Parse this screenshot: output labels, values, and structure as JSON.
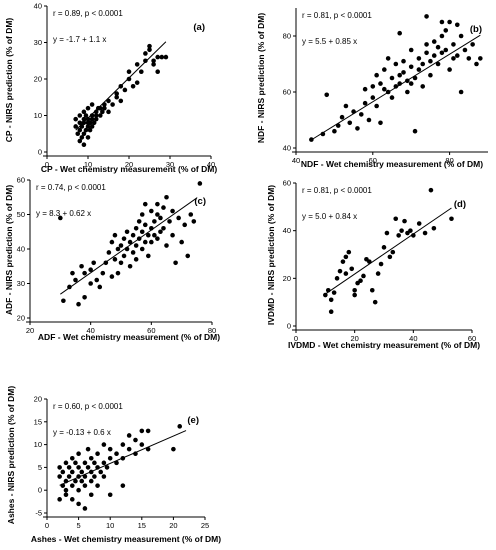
{
  "chart_data": [
    {
      "type": "scatter",
      "panel_label": "(a)",
      "xlabel": "CP - Wet chemistry measurement (% of DM)",
      "ylabel": "CP - NIRS prediction (% of DM)",
      "xlim": [
        0,
        40
      ],
      "ylim": [
        0,
        40
      ],
      "xticks": [
        0,
        10,
        20,
        30,
        40
      ],
      "yticks": [
        0,
        10,
        20,
        30,
        40
      ],
      "annotations": [
        "r = 0.89,  p < 0.0001",
        "y = -1.7 + 1.1 x"
      ],
      "regression": {
        "intercept": -1.7,
        "slope": 1.1,
        "x_range": [
          7,
          29
        ]
      },
      "points": [
        [
          7,
          7
        ],
        [
          7,
          9
        ],
        [
          7.5,
          5
        ],
        [
          8,
          3
        ],
        [
          8,
          6
        ],
        [
          8,
          8
        ],
        [
          8,
          10
        ],
        [
          8.5,
          4
        ],
        [
          8.5,
          7
        ],
        [
          9,
          2
        ],
        [
          9,
          5
        ],
        [
          9,
          8
        ],
        [
          9,
          9
        ],
        [
          9,
          11
        ],
        [
          9.5,
          6
        ],
        [
          9.5,
          10
        ],
        [
          10,
          4
        ],
        [
          10,
          7
        ],
        [
          10,
          8
        ],
        [
          10,
          9
        ],
        [
          10,
          12
        ],
        [
          10.5,
          6
        ],
        [
          10.5,
          8
        ],
        [
          11,
          7
        ],
        [
          11,
          9
        ],
        [
          11,
          10
        ],
        [
          11,
          13
        ],
        [
          11.5,
          8
        ],
        [
          12,
          9
        ],
        [
          12,
          11
        ],
        [
          12,
          10
        ],
        [
          12.5,
          12
        ],
        [
          13,
          10
        ],
        [
          13,
          12
        ],
        [
          13.5,
          11
        ],
        [
          14,
          12
        ],
        [
          14,
          13
        ],
        [
          15,
          11
        ],
        [
          15,
          14
        ],
        [
          16,
          13
        ],
        [
          17,
          15
        ],
        [
          17,
          16
        ],
        [
          18,
          18
        ],
        [
          18,
          14
        ],
        [
          19,
          17
        ],
        [
          20,
          20
        ],
        [
          20,
          22
        ],
        [
          21,
          18
        ],
        [
          22,
          19
        ],
        [
          22,
          24
        ],
        [
          23,
          22
        ],
        [
          24,
          25
        ],
        [
          24,
          27
        ],
        [
          25,
          28
        ],
        [
          25,
          29
        ],
        [
          26,
          25
        ],
        [
          26,
          24
        ],
        [
          27,
          26
        ],
        [
          27,
          22
        ],
        [
          28,
          26
        ],
        [
          29,
          26
        ]
      ]
    },
    {
      "type": "scatter",
      "panel_label": "(b)",
      "xlabel": "NDF - Wet chemistry measurement (% of DM)",
      "ylabel": "NDF - NIRS prediction (% of DM)",
      "xlim": [
        40,
        90
      ],
      "ylim": [
        40,
        90
      ],
      "xticks": [
        40,
        60,
        80
      ],
      "yticks": [
        40,
        60,
        80
      ],
      "annotations": [
        "r = 0.81,  p < 0.0001",
        "y = 5.5 + 0.85 x"
      ],
      "regression": {
        "intercept": 5.5,
        "slope": 0.85,
        "x_range": [
          44,
          88
        ]
      },
      "points": [
        [
          44,
          43
        ],
        [
          47,
          45
        ],
        [
          48,
          59
        ],
        [
          50,
          46
        ],
        [
          51,
          48
        ],
        [
          52,
          51
        ],
        [
          53,
          55
        ],
        [
          54,
          49
        ],
        [
          55,
          53
        ],
        [
          56,
          47
        ],
        [
          57,
          52
        ],
        [
          58,
          56
        ],
        [
          58,
          61
        ],
        [
          59,
          50
        ],
        [
          60,
          58
        ],
        [
          60,
          62
        ],
        [
          61,
          66
        ],
        [
          61,
          55
        ],
        [
          62,
          63
        ],
        [
          62,
          49
        ],
        [
          63,
          61
        ],
        [
          63,
          68
        ],
        [
          64,
          60
        ],
        [
          64,
          72
        ],
        [
          65,
          65
        ],
        [
          65,
          58
        ],
        [
          66,
          62
        ],
        [
          66,
          70
        ],
        [
          67,
          63
        ],
        [
          67,
          66
        ],
        [
          67,
          81
        ],
        [
          68,
          67
        ],
        [
          68,
          71
        ],
        [
          69,
          64
        ],
        [
          69,
          60
        ],
        [
          70,
          63
        ],
        [
          70,
          69
        ],
        [
          70,
          75
        ],
        [
          71,
          46
        ],
        [
          71,
          65
        ],
        [
          72,
          72
        ],
        [
          72,
          68
        ],
        [
          73,
          70
        ],
        [
          73,
          62
        ],
        [
          74,
          74
        ],
        [
          74,
          77
        ],
        [
          75,
          71
        ],
        [
          75,
          66
        ],
        [
          76,
          73
        ],
        [
          76,
          78
        ],
        [
          77,
          76
        ],
        [
          77,
          70
        ],
        [
          78,
          74
        ],
        [
          78,
          80
        ],
        [
          79,
          75
        ],
        [
          79,
          82
        ],
        [
          80,
          68
        ],
        [
          80,
          85
        ],
        [
          81,
          72
        ],
        [
          81,
          77
        ],
        [
          82,
          84
        ],
        [
          82,
          73
        ],
        [
          83,
          80
        ],
        [
          83,
          60
        ],
        [
          84,
          75
        ],
        [
          85,
          72
        ],
        [
          86,
          77
        ],
        [
          87,
          70
        ],
        [
          88,
          72
        ],
        [
          74,
          87
        ],
        [
          78,
          85
        ]
      ]
    },
    {
      "type": "scatter",
      "panel_label": "(c)",
      "xlabel": "ADF - Wet chemistry measurement (% of DM)",
      "ylabel": "ADF - NIRS prediction (% of DM)",
      "xlim": [
        20,
        80
      ],
      "ylim": [
        20,
        60
      ],
      "xticks": [
        20,
        40,
        60,
        80
      ],
      "yticks": [
        20,
        30,
        40,
        50,
        60
      ],
      "annotations": [
        "r = 0.74,  p < 0.0001",
        "y = 8.3 + 0.62 x"
      ],
      "regression": {
        "intercept": 8.3,
        "slope": 0.62,
        "x_range": [
          30,
          75
        ]
      },
      "points": [
        [
          30,
          49
        ],
        [
          31,
          25
        ],
        [
          33,
          29
        ],
        [
          34,
          33
        ],
        [
          35,
          31
        ],
        [
          36,
          24
        ],
        [
          37,
          35
        ],
        [
          38,
          26
        ],
        [
          38,
          33
        ],
        [
          40,
          34
        ],
        [
          40,
          30
        ],
        [
          41,
          36
        ],
        [
          42,
          31
        ],
        [
          43,
          29
        ],
        [
          44,
          33
        ],
        [
          45,
          36
        ],
        [
          46,
          39
        ],
        [
          47,
          32
        ],
        [
          47,
          42
        ],
        [
          48,
          37
        ],
        [
          48,
          44
        ],
        [
          49,
          40
        ],
        [
          49,
          33
        ],
        [
          50,
          36
        ],
        [
          50,
          41
        ],
        [
          51,
          43
        ],
        [
          51,
          38
        ],
        [
          52,
          40
        ],
        [
          52,
          45
        ],
        [
          53,
          42
        ],
        [
          53,
          35
        ],
        [
          54,
          44
        ],
        [
          54,
          39
        ],
        [
          55,
          46
        ],
        [
          55,
          41
        ],
        [
          55,
          37
        ],
        [
          56,
          43
        ],
        [
          56,
          48
        ],
        [
          57,
          45
        ],
        [
          57,
          40
        ],
        [
          57,
          50
        ],
        [
          58,
          42
        ],
        [
          58,
          47
        ],
        [
          58,
          53
        ],
        [
          59,
          44
        ],
        [
          59,
          38
        ],
        [
          60,
          46
        ],
        [
          60,
          51
        ],
        [
          60,
          42
        ],
        [
          61,
          48
        ],
        [
          61,
          44
        ],
        [
          62,
          50
        ],
        [
          62,
          43
        ],
        [
          62,
          53
        ],
        [
          63,
          45
        ],
        [
          63,
          49
        ],
        [
          64,
          52
        ],
        [
          64,
          46
        ],
        [
          65,
          41
        ],
        [
          65,
          55
        ],
        [
          66,
          48
        ],
        [
          67,
          44
        ],
        [
          67,
          51
        ],
        [
          68,
          36
        ],
        [
          69,
          49
        ],
        [
          70,
          42
        ],
        [
          71,
          47
        ],
        [
          72,
          38
        ],
        [
          73,
          50
        ],
        [
          74,
          48
        ],
        [
          76,
          59
        ]
      ]
    },
    {
      "type": "scatter",
      "panel_label": "(d)",
      "xlabel": "IVDMD - Wet chemistry measurement (% of DM)",
      "ylabel": "IVDMD - NIRS prediction (% of DM)",
      "xlim": [
        0,
        60
      ],
      "ylim": [
        0,
        60
      ],
      "xticks": [
        0,
        20,
        40,
        60
      ],
      "yticks": [
        0,
        20,
        40,
        60
      ],
      "annotations": [
        "r = 0.81,  p < 0.0001",
        "y = 5.0 + 0.84 x"
      ],
      "regression": {
        "intercept": 5.0,
        "slope": 0.84,
        "x_range": [
          10,
          53
        ]
      },
      "points": [
        [
          10,
          13
        ],
        [
          11,
          15
        ],
        [
          12,
          11
        ],
        [
          12,
          6
        ],
        [
          13,
          14
        ],
        [
          14,
          20
        ],
        [
          15,
          23
        ],
        [
          16,
          27
        ],
        [
          17,
          22
        ],
        [
          17,
          29
        ],
        [
          18,
          31
        ],
        [
          19,
          24
        ],
        [
          20,
          15
        ],
        [
          20,
          13
        ],
        [
          21,
          18
        ],
        [
          22,
          19
        ],
        [
          23,
          21
        ],
        [
          24,
          28
        ],
        [
          25,
          27
        ],
        [
          26,
          15
        ],
        [
          27,
          10
        ],
        [
          28,
          22
        ],
        [
          29,
          26
        ],
        [
          30,
          33
        ],
        [
          31,
          39
        ],
        [
          32,
          29
        ],
        [
          33,
          31
        ],
        [
          34,
          45
        ],
        [
          35,
          38
        ],
        [
          36,
          40
        ],
        [
          37,
          44
        ],
        [
          38,
          39
        ],
        [
          39,
          40
        ],
        [
          40,
          38
        ],
        [
          42,
          43
        ],
        [
          44,
          39
        ],
        [
          46,
          57
        ],
        [
          47,
          41
        ],
        [
          53,
          45
        ]
      ]
    },
    {
      "type": "scatter",
      "panel_label": "(e)",
      "xlabel": "Ashes - Wet chemistry measurement (% of DM)",
      "ylabel": "Ashes - NIRS prediction (% of DM)",
      "xlim": [
        0,
        25
      ],
      "ylim": [
        -5,
        20
      ],
      "xticks": [
        0,
        5,
        10,
        15,
        20,
        25
      ],
      "yticks": [
        -5,
        0,
        5,
        10,
        15,
        20
      ],
      "annotations": [
        "r = 0.60,  p < 0.0001",
        "y = -0.13 + 0.6 x"
      ],
      "regression": {
        "intercept": -0.13,
        "slope": 0.6,
        "x_range": [
          2,
          22
        ]
      },
      "points": [
        [
          2,
          3
        ],
        [
          2,
          5
        ],
        [
          2,
          -2
        ],
        [
          2.5,
          1
        ],
        [
          2.5,
          4
        ],
        [
          3,
          0
        ],
        [
          3,
          2
        ],
        [
          3,
          6
        ],
        [
          3,
          -1
        ],
        [
          3.5,
          3
        ],
        [
          3.5,
          5
        ],
        [
          4,
          1
        ],
        [
          4,
          4
        ],
        [
          4,
          -2
        ],
        [
          4,
          7
        ],
        [
          4.5,
          2
        ],
        [
          4.5,
          6
        ],
        [
          5,
          0
        ],
        [
          5,
          3
        ],
        [
          5,
          5
        ],
        [
          5,
          -3
        ],
        [
          5,
          8
        ],
        [
          5.5,
          2
        ],
        [
          5.5,
          4
        ],
        [
          6,
          1
        ],
        [
          6,
          3
        ],
        [
          6,
          6
        ],
        [
          6,
          -4
        ],
        [
          6.5,
          5
        ],
        [
          6.5,
          9
        ],
        [
          7,
          2
        ],
        [
          7,
          4
        ],
        [
          7,
          7
        ],
        [
          7,
          -1
        ],
        [
          7.5,
          3
        ],
        [
          7.5,
          6
        ],
        [
          8,
          5
        ],
        [
          8,
          8
        ],
        [
          8,
          1
        ],
        [
          8.5,
          4
        ],
        [
          9,
          6
        ],
        [
          9,
          10
        ],
        [
          9,
          3
        ],
        [
          9.5,
          5
        ],
        [
          10,
          7
        ],
        [
          10,
          -1
        ],
        [
          10,
          9
        ],
        [
          11,
          6
        ],
        [
          11,
          8
        ],
        [
          12,
          7
        ],
        [
          12,
          10
        ],
        [
          12,
          1
        ],
        [
          13,
          12
        ],
        [
          13,
          9
        ],
        [
          14,
          8
        ],
        [
          14,
          11
        ],
        [
          15,
          13
        ],
        [
          15,
          10
        ],
        [
          16,
          9
        ],
        [
          16,
          13
        ],
        [
          20,
          9
        ],
        [
          21,
          14
        ]
      ]
    }
  ]
}
